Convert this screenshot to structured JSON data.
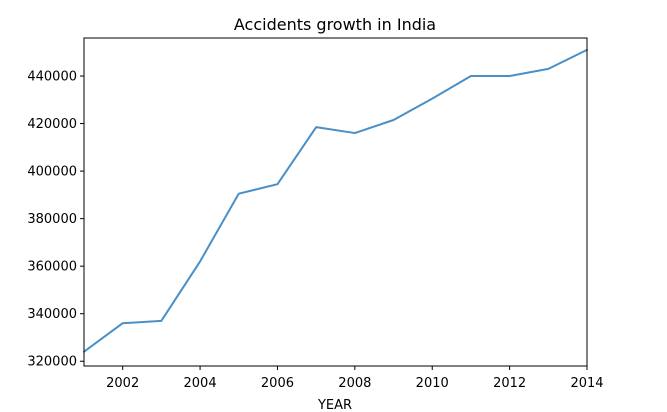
{
  "chart_data": {
    "type": "line",
    "title": "Accidents growth in India",
    "xlabel": "YEAR",
    "ylabel": "",
    "xlim": [
      2001,
      2014
    ],
    "ylim": [
      318000,
      456000
    ],
    "x_ticks": [
      2002,
      2004,
      2006,
      2008,
      2010,
      2012,
      2014
    ],
    "y_ticks": [
      320000,
      340000,
      360000,
      380000,
      400000,
      420000,
      440000
    ],
    "grid": false,
    "series_color": "#4a8fc6",
    "series": [
      {
        "x": [
          2001,
          2002,
          2003,
          2004,
          2005,
          2006,
          2007,
          2008,
          2009,
          2010,
          2011,
          2012,
          2013,
          2014
        ],
        "values": [
          324000,
          336000,
          337000,
          362000,
          390500,
          394500,
          418500,
          416000,
          421500,
          430500,
          440000,
          440000,
          443000,
          451000
        ]
      }
    ]
  }
}
